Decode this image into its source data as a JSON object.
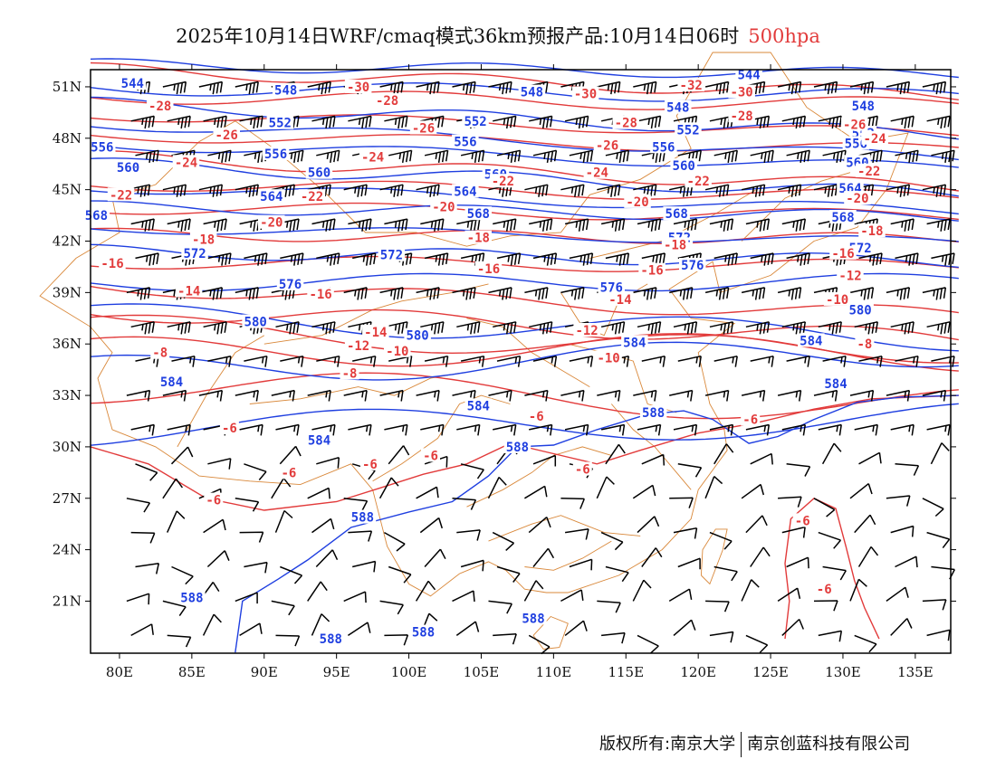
{
  "title": {
    "main": "2025年10月14日WRF/cmaq模式36km预报产品:10月14日06时",
    "level": "500hpa"
  },
  "axes": {
    "lat_labels": [
      "51N",
      "48N",
      "45N",
      "42N",
      "39N",
      "36N",
      "33N",
      "30N",
      "27N",
      "24N",
      "21N"
    ],
    "lon_labels": [
      "80E",
      "85E",
      "90E",
      "95E",
      "100E",
      "105E",
      "110E",
      "115E",
      "120E",
      "125E",
      "130E",
      "135E"
    ]
  },
  "colors": {
    "height_contour": "#1f3fe0",
    "temperature_contour": "#e23b3b",
    "boundary": "#d9883a",
    "wind_barb": "#000000"
  },
  "chart_data": {
    "type": "contour-map",
    "level": "500hpa",
    "lon_range": [
      78,
      138
    ],
    "lat_range": [
      18,
      52
    ],
    "height_contours_dagpm": [
      {
        "value": "544",
        "label_lonlat": [
          [
            123.5,
            51.7
          ],
          [
            80.9,
            51.2
          ]
        ]
      },
      {
        "value": "548",
        "label_lonlat": [
          [
            91.5,
            50.8
          ],
          [
            108.5,
            50.7
          ],
          [
            118.6,
            49.8
          ],
          [
            131.4,
            49.9
          ]
        ]
      },
      {
        "value": "552",
        "label_lonlat": [
          [
            91.1,
            48.9
          ],
          [
            104.6,
            49.0
          ],
          [
            119.3,
            48.5
          ],
          [
            131.4,
            48.3
          ]
        ]
      },
      {
        "value": "556",
        "label_lonlat": [
          [
            78.8,
            47.5
          ],
          [
            90.8,
            47.1
          ],
          [
            103.9,
            47.8
          ],
          [
            117.6,
            47.5
          ],
          [
            130.9,
            47.7
          ]
        ]
      },
      {
        "value": "560",
        "label_lonlat": [
          [
            80.6,
            46.3
          ],
          [
            93.8,
            46.0
          ],
          [
            106.0,
            45.9
          ],
          [
            119.0,
            46.4
          ],
          [
            131.0,
            46.6
          ]
        ]
      },
      {
        "value": "564",
        "label_lonlat": [
          [
            90.5,
            44.6
          ],
          [
            103.9,
            44.9
          ],
          [
            130.5,
            45.1
          ]
        ]
      },
      {
        "value": "568",
        "label_lonlat": [
          [
            78.4,
            43.5
          ],
          [
            104.8,
            43.6
          ],
          [
            118.5,
            43.6
          ],
          [
            130.0,
            43.4
          ]
        ]
      },
      {
        "value": "572",
        "label_lonlat": [
          [
            85.2,
            41.3
          ],
          [
            98.8,
            41.2
          ],
          [
            118.7,
            42.2
          ],
          [
            131.2,
            41.6
          ]
        ]
      },
      {
        "value": "576",
        "label_lonlat": [
          [
            91.8,
            39.5
          ],
          [
            114.0,
            39.3
          ],
          [
            119.6,
            40.6
          ]
        ]
      },
      {
        "value": "580",
        "label_lonlat": [
          [
            89.4,
            37.3
          ],
          [
            100.6,
            36.5
          ],
          [
            131.2,
            38.0
          ]
        ]
      },
      {
        "value": "584",
        "label_lonlat": [
          [
            83.6,
            33.8
          ],
          [
            93.8,
            30.4
          ],
          [
            104.8,
            32.4
          ],
          [
            115.6,
            36.1
          ],
          [
            127.8,
            36.2
          ],
          [
            129.5,
            33.7
          ]
        ]
      },
      {
        "value": "588",
        "label_lonlat": [
          [
            96.8,
            25.9
          ],
          [
            107.5,
            30.0
          ],
          [
            116.9,
            32.0
          ],
          [
            85.0,
            21.2
          ],
          [
            94.6,
            18.8
          ],
          [
            101.0,
            19.2
          ],
          [
            108.6,
            20.0
          ]
        ]
      }
    ],
    "temperature_contours_c": [
      {
        "value": "-32",
        "label_lonlat": [
          [
            119.5,
            51.1
          ]
        ]
      },
      {
        "value": "-30",
        "label_lonlat": [
          [
            96.5,
            51.0
          ],
          [
            112.2,
            50.6
          ],
          [
            123.0,
            50.7
          ]
        ]
      },
      {
        "value": "-28",
        "label_lonlat": [
          [
            82.8,
            49.9
          ],
          [
            98.5,
            50.2
          ],
          [
            115.0,
            48.9
          ],
          [
            123.0,
            49.3
          ]
        ]
      },
      {
        "value": "-26",
        "label_lonlat": [
          [
            87.4,
            48.2
          ],
          [
            101.0,
            48.6
          ],
          [
            113.7,
            47.6
          ],
          [
            130.8,
            48.8
          ]
        ]
      },
      {
        "value": "-24",
        "label_lonlat": [
          [
            84.6,
            46.6
          ],
          [
            97.5,
            46.9
          ],
          [
            113.0,
            46.0
          ],
          [
            132.2,
            48.0
          ]
        ]
      },
      {
        "value": "-22",
        "label_lonlat": [
          [
            80.1,
            44.7
          ],
          [
            93.3,
            44.6
          ],
          [
            106.5,
            45.5
          ],
          [
            120.0,
            45.5
          ],
          [
            131.8,
            46.1
          ]
        ]
      },
      {
        "value": "-20",
        "label_lonlat": [
          [
            90.5,
            43.1
          ],
          [
            102.4,
            44.0
          ],
          [
            115.8,
            44.3
          ],
          [
            131.0,
            44.5
          ]
        ]
      },
      {
        "value": "-18",
        "label_lonlat": [
          [
            85.8,
            42.1
          ],
          [
            104.8,
            42.2
          ],
          [
            118.4,
            41.8
          ],
          [
            132.0,
            42.6
          ]
        ]
      },
      {
        "value": "-16",
        "label_lonlat": [
          [
            79.5,
            40.7
          ],
          [
            93.9,
            38.9
          ],
          [
            105.5,
            40.4
          ],
          [
            116.8,
            40.3
          ],
          [
            130.0,
            41.3
          ]
        ]
      },
      {
        "value": "-14",
        "label_lonlat": [
          [
            84.8,
            39.1
          ],
          [
            97.7,
            36.7
          ],
          [
            114.6,
            38.6
          ]
        ]
      },
      {
        "value": "-12",
        "label_lonlat": [
          [
            96.5,
            35.9
          ],
          [
            112.3,
            36.8
          ],
          [
            130.5,
            40.0
          ]
        ]
      },
      {
        "value": "-10",
        "label_lonlat": [
          [
            99.2,
            35.6
          ],
          [
            113.8,
            35.2
          ],
          [
            129.6,
            38.6
          ]
        ]
      },
      {
        "value": "-8",
        "label_lonlat": [
          [
            82.8,
            35.5
          ],
          [
            95.9,
            34.3
          ],
          [
            131.5,
            36.0
          ]
        ]
      },
      {
        "value": "-6",
        "label_lonlat": [
          [
            87.6,
            31.1
          ],
          [
            91.7,
            28.5
          ],
          [
            97.3,
            29.0
          ],
          [
            101.5,
            29.5
          ],
          [
            108.8,
            31.8
          ],
          [
            112.0,
            28.7
          ],
          [
            123.6,
            31.6
          ],
          [
            86.5,
            26.9
          ],
          [
            127.2,
            25.7
          ],
          [
            128.7,
            21.7
          ]
        ]
      }
    ],
    "features": [
      "wind barbs",
      "province boundaries",
      "coastline"
    ]
  },
  "footer": {
    "copyright": "版权所有:南京大学",
    "company": "南京创蓝科技有限公司"
  }
}
